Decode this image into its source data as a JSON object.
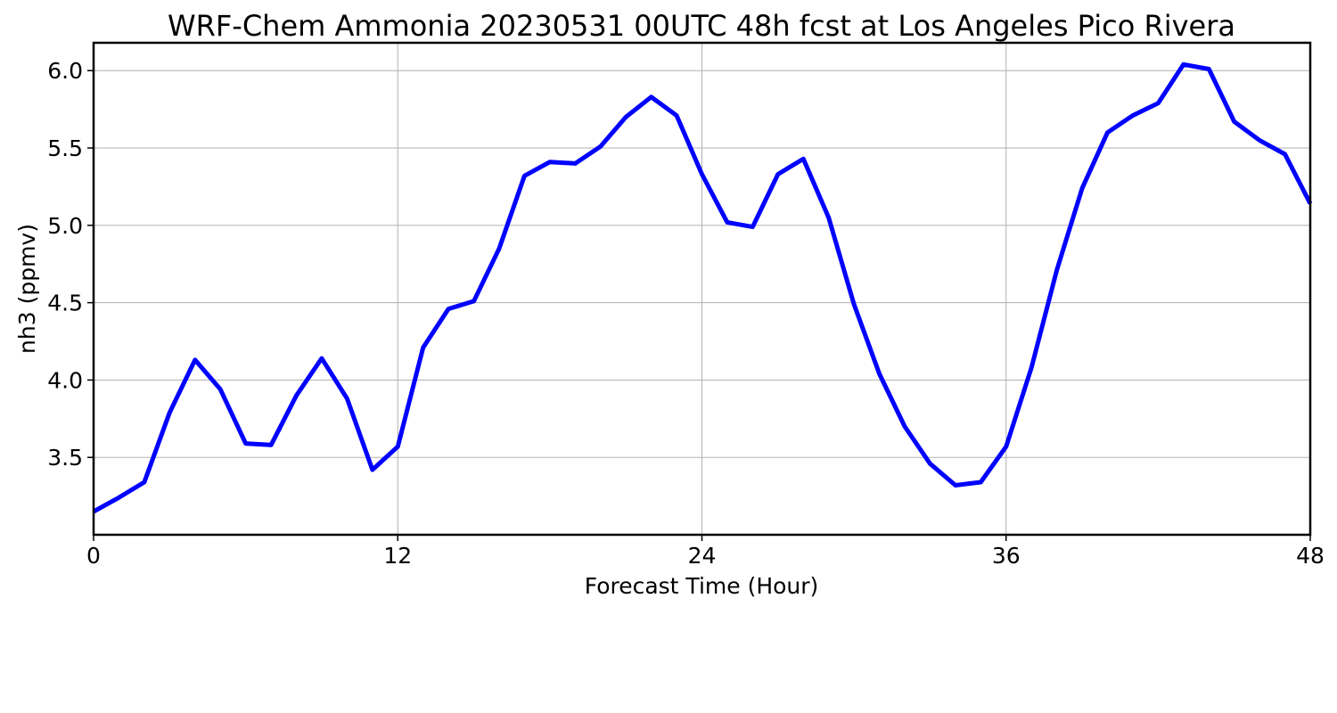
{
  "chart_data": {
    "type": "line",
    "title": "WRF-Chem Ammonia  20230531 00UTC 48h fcst at Los Angeles Pico Rivera",
    "xlabel": "Forecast Time (Hour)",
    "ylabel": "nh3  (ppmv)",
    "xlim": [
      0,
      48
    ],
    "ylim": [
      3.0,
      6.18
    ],
    "xticks": [
      0,
      12,
      24,
      36,
      48
    ],
    "yticks": [
      3.5,
      4.0,
      4.5,
      5.0,
      5.5,
      6.0
    ],
    "ytick_labels": [
      "3.5",
      "4.0",
      "4.5",
      "5.0",
      "5.5",
      "6.0"
    ],
    "grid": true,
    "series": [
      {
        "color": "#0000ff",
        "x": [
          0,
          1,
          2,
          3,
          4,
          5,
          6,
          7,
          8,
          9,
          10,
          11,
          12,
          13,
          14,
          15,
          16,
          17,
          18,
          19,
          20,
          21,
          22,
          23,
          24,
          25,
          26,
          27,
          28,
          29,
          30,
          31,
          32,
          33,
          34,
          35,
          36,
          37,
          38,
          39,
          40,
          41,
          42,
          43,
          44,
          45,
          46,
          47,
          48
        ],
        "values": [
          3.15,
          3.24,
          3.34,
          3.79,
          4.13,
          3.94,
          3.59,
          3.58,
          3.9,
          4.14,
          3.88,
          3.42,
          3.57,
          4.21,
          4.46,
          4.51,
          4.85,
          5.32,
          5.41,
          5.4,
          5.51,
          5.7,
          5.83,
          5.71,
          5.33,
          5.02,
          4.99,
          5.33,
          5.43,
          5.05,
          4.49,
          4.04,
          3.7,
          3.46,
          3.32,
          3.34,
          3.57,
          4.08,
          4.71,
          5.24,
          5.6,
          5.71,
          5.79,
          6.04,
          6.01,
          5.67,
          5.55,
          5.46,
          5.14
        ]
      }
    ]
  }
}
